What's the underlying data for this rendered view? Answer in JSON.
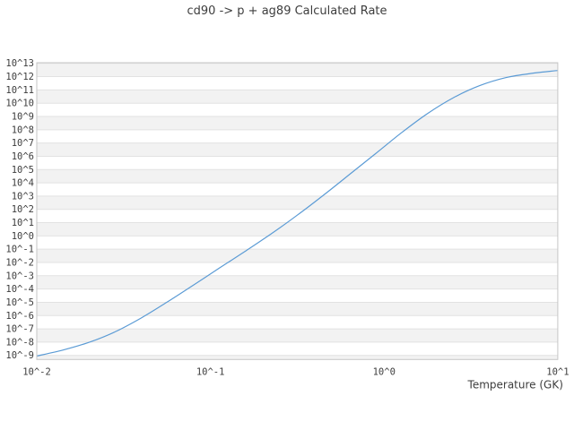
{
  "chart_data": {
    "type": "line",
    "title": "cd90 -> p + ag89 Calculated Rate",
    "xlabel": "Temperature (GK)",
    "ylabel": "",
    "x_scale": "log10",
    "y_scale": "log10",
    "xlim_log": [
      -2,
      1
    ],
    "ylim_log": [
      -9.31,
      13.05
    ],
    "x_tick_log": [
      -2,
      -1,
      0,
      1
    ],
    "x_tick_labels": [
      "10^-2",
      "10^-1",
      "10^0",
      "10^1"
    ],
    "y_tick_log": [
      13,
      12,
      11,
      10,
      9,
      8,
      7,
      6,
      5,
      4,
      3,
      2,
      1,
      0,
      -1,
      -2,
      -3,
      -4,
      -5,
      -6,
      -7,
      -8,
      -9
    ],
    "y_tick_labels": [
      "10^13",
      "10^12",
      "10^11",
      "10^10",
      "10^9",
      "10^8",
      "10^7",
      "10^6",
      "10^5",
      "10^4",
      "10^3",
      "10^2",
      "10^1",
      "10^0",
      "10^-1",
      "10^-2",
      "10^-3",
      "10^-4",
      "10^-5",
      "10^-6",
      "10^-7",
      "10^-8",
      "10^-9"
    ],
    "grid": "horizontal-decade-bands",
    "legend": "none",
    "series": [
      {
        "name": "calculated-rate",
        "log10_T": [
          -2.0,
          -1.85,
          -1.7,
          -1.55,
          -1.4,
          -1.25,
          -1.1,
          -0.95,
          -0.8,
          -0.65,
          -0.5,
          -0.35,
          -0.2,
          -0.05,
          0.1,
          0.25,
          0.4,
          0.55,
          0.7,
          0.85,
          1.0
        ],
        "log10_rate": [
          -9.05,
          -8.6,
          -8.02,
          -7.23,
          -6.19,
          -4.99,
          -3.72,
          -2.43,
          -1.16,
          0.16,
          1.56,
          3.06,
          4.62,
          6.19,
          7.77,
          9.22,
          10.42,
          11.32,
          11.92,
          12.25,
          12.46
        ]
      }
    ],
    "colors": {
      "line": "#5b9bd5",
      "band": "#f2f2f2",
      "grid": "#e2e2e2",
      "border": "#c6c6c6",
      "text": "#3d3d3d"
    }
  }
}
